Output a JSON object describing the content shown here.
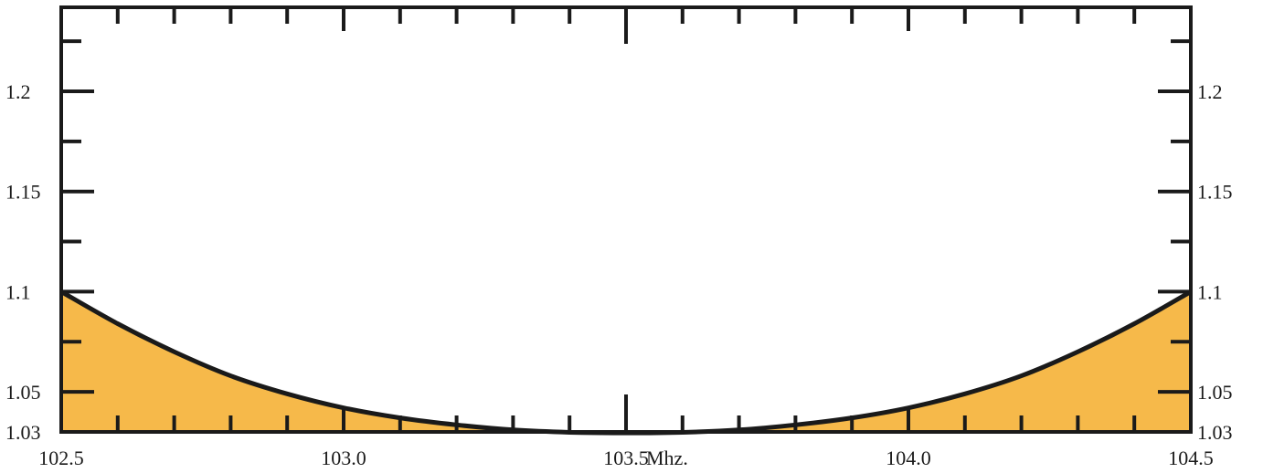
{
  "chart_data": {
    "type": "area",
    "title": "",
    "xlabel": "",
    "ylabel": "",
    "x_unit_label": "Mhz.",
    "xlim": [
      102.5,
      104.5
    ],
    "ylim": [
      1.03,
      1.25
    ],
    "x_ticks": [
      102.5,
      103.0,
      103.5,
      104.0,
      104.5
    ],
    "x_tick_labels": [
      "102.5",
      "103.0",
      "103.5",
      "104.0",
      "104.5"
    ],
    "y_ticks": [
      1.03,
      1.05,
      1.1,
      1.15,
      1.2
    ],
    "y_tick_labels": [
      "1.03",
      "1.05",
      "1.1",
      "1.15",
      "1.2"
    ],
    "grid": false,
    "fill_color": "#f6b94a",
    "line_color": "#1a1a1a",
    "series": [
      {
        "x": [
          102.5,
          102.6,
          102.7,
          102.8,
          102.9,
          103.0,
          103.1,
          103.2,
          103.3,
          103.4,
          103.5,
          103.6,
          103.7,
          103.8,
          103.9,
          104.0,
          104.1,
          104.2,
          104.3,
          104.4,
          104.5
        ],
        "values": [
          1.1,
          1.084,
          1.07,
          1.058,
          1.049,
          1.042,
          1.037,
          1.0335,
          1.031,
          1.0298,
          1.0295,
          1.0298,
          1.031,
          1.0335,
          1.037,
          1.042,
          1.049,
          1.058,
          1.07,
          1.084,
          1.1
        ]
      }
    ]
  }
}
